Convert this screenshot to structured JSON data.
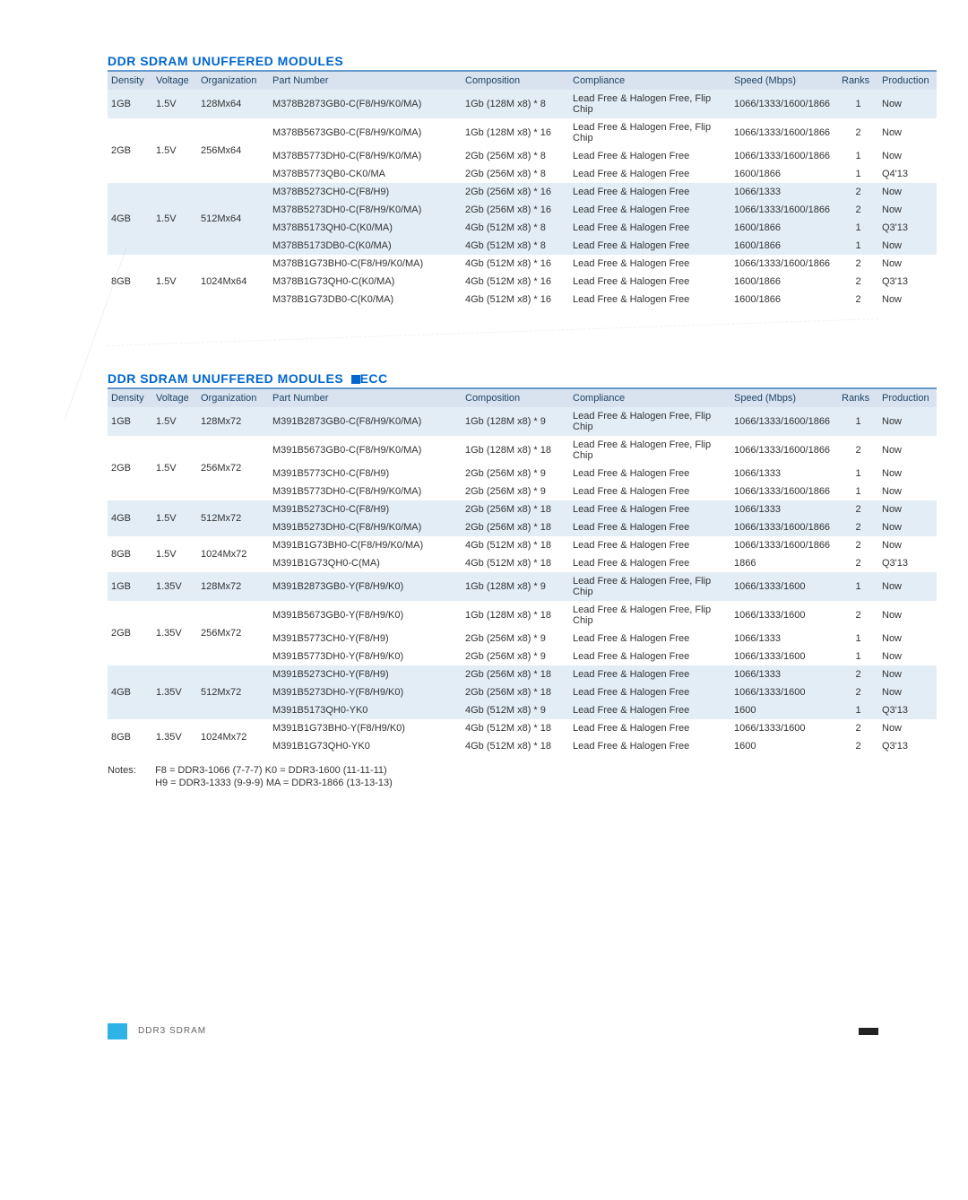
{
  "titles": {
    "t1": "DDR SDRAM UNUFFERED MODULES",
    "t2": "DDR SDRAM UNUFFERED MODULES",
    "t2_suffix": "ECC"
  },
  "headers": [
    "Density",
    "Voltage",
    "Organization",
    "Part Number",
    "Composition",
    "Compliance",
    "Speed (Mbps)",
    "Ranks",
    "Production"
  ],
  "table1": {
    "groups": [
      {
        "density": "1GB",
        "voltage": "1.5V",
        "org": "128Mx64",
        "shade": "odd",
        "rows": [
          {
            "part": "M378B2873GB0-C(F8/H9/K0/MA)",
            "comp": "1Gb (128M x8) * 8",
            "compl": "Lead Free & Halogen Free, Flip Chip",
            "speed": "1066/1333/1600/1866",
            "ranks": "1",
            "prod": "Now"
          }
        ]
      },
      {
        "density": "2GB",
        "voltage": "1.5V",
        "org": "256Mx64",
        "shade": "even",
        "rows": [
          {
            "part": "M378B5673GB0-C(F8/H9/K0/MA)",
            "comp": "1Gb (128M x8) * 16",
            "compl": "Lead Free & Halogen Free, Flip Chip",
            "speed": "1066/1333/1600/1866",
            "ranks": "2",
            "prod": "Now"
          },
          {
            "part": "M378B5773DH0-C(F8/H9/K0/MA)",
            "comp": "2Gb (256M x8) * 8",
            "compl": "Lead Free & Halogen Free",
            "speed": "1066/1333/1600/1866",
            "ranks": "1",
            "prod": "Now"
          },
          {
            "part": "M378B5773QB0-CK0/MA",
            "comp": "2Gb (256M x8) * 8",
            "compl": "Lead Free & Halogen Free",
            "speed": "1600/1866",
            "ranks": "1",
            "prod": "Q4'13"
          }
        ]
      },
      {
        "density": "4GB",
        "voltage": "1.5V",
        "org": "512Mx64",
        "shade": "odd",
        "rows": [
          {
            "part": "M378B5273CH0-C(F8/H9)",
            "comp": "2Gb (256M x8) * 16",
            "compl": "Lead Free & Halogen Free",
            "speed": "1066/1333",
            "ranks": "2",
            "prod": "Now"
          },
          {
            "part": "M378B5273DH0-C(F8/H9/K0/MA)",
            "comp": "2Gb (256M x8) * 16",
            "compl": "Lead Free & Halogen Free",
            "speed": "1066/1333/1600/1866",
            "ranks": "2",
            "prod": "Now"
          },
          {
            "part": "M378B5173QH0-C(K0/MA)",
            "comp": "4Gb (512M x8) * 8",
            "compl": "Lead Free & Halogen Free",
            "speed": "1600/1866",
            "ranks": "1",
            "prod": "Q3'13"
          },
          {
            "part": "M378B5173DB0-C(K0/MA)",
            "comp": "4Gb (512M x8) * 8",
            "compl": "Lead Free & Halogen Free",
            "speed": "1600/1866",
            "ranks": "1",
            "prod": "Now"
          }
        ]
      },
      {
        "density": "8GB",
        "voltage": "1.5V",
        "org": "1024Mx64",
        "shade": "even",
        "rows": [
          {
            "part": "M378B1G73BH0-C(F8/H9/K0/MA)",
            "comp": "4Gb (512M x8) * 16",
            "compl": "Lead Free & Halogen Free",
            "speed": "1066/1333/1600/1866",
            "ranks": "2",
            "prod": "Now"
          },
          {
            "part": "M378B1G73QH0-C(K0/MA)",
            "comp": "4Gb (512M x8) * 16",
            "compl": "Lead Free & Halogen Free",
            "speed": "1600/1866",
            "ranks": "2",
            "prod": "Q3'13"
          },
          {
            "part": "M378B1G73DB0-C(K0/MA)",
            "comp": "4Gb (512M x8) * 16",
            "compl": "Lead Free & Halogen Free",
            "speed": "1600/1866",
            "ranks": "2",
            "prod": "Now"
          }
        ]
      }
    ]
  },
  "table2": {
    "groups": [
      {
        "density": "1GB",
        "voltage": "1.5V",
        "org": "128Mx72",
        "shade": "odd",
        "rows": [
          {
            "part": "M391B2873GB0-C(F8/H9/K0/MA)",
            "comp": "1Gb (128M x8) * 9",
            "compl": "Lead Free & Halogen Free, Flip Chip",
            "speed": "1066/1333/1600/1866",
            "ranks": "1",
            "prod": "Now"
          }
        ]
      },
      {
        "density": "2GB",
        "voltage": "1.5V",
        "org": "256Mx72",
        "shade": "even",
        "rows": [
          {
            "part": "M391B5673GB0-C(F8/H9/K0/MA)",
            "comp": "1Gb (128M x8) * 18",
            "compl": "Lead Free & Halogen Free, Flip Chip",
            "speed": "1066/1333/1600/1866",
            "ranks": "2",
            "prod": "Now"
          },
          {
            "part": "M391B5773CH0-C(F8/H9)",
            "comp": "2Gb (256M x8) * 9",
            "compl": "Lead Free & Halogen Free",
            "speed": "1066/1333",
            "ranks": "1",
            "prod": "Now"
          },
          {
            "part": "M391B5773DH0-C(F8/H9/K0/MA)",
            "comp": "2Gb (256M x8) * 9",
            "compl": "Lead Free & Halogen Free",
            "speed": "1066/1333/1600/1866",
            "ranks": "1",
            "prod": "Now"
          }
        ]
      },
      {
        "density": "4GB",
        "voltage": "1.5V",
        "org": "512Mx72",
        "shade": "odd",
        "rows": [
          {
            "part": "M391B5273CH0-C(F8/H9)",
            "comp": "2Gb (256M x8) * 18",
            "compl": "Lead Free & Halogen Free",
            "speed": "1066/1333",
            "ranks": "2",
            "prod": "Now"
          },
          {
            "part": "M391B5273DH0-C(F8/H9/K0/MA)",
            "comp": "2Gb (256M x8) * 18",
            "compl": "Lead Free & Halogen Free",
            "speed": "1066/1333/1600/1866",
            "ranks": "2",
            "prod": "Now"
          }
        ]
      },
      {
        "density": "8GB",
        "voltage": "1.5V",
        "org": "1024Mx72",
        "shade": "even",
        "rows": [
          {
            "part": "M391B1G73BH0-C(F8/H9/K0/MA)",
            "comp": "4Gb (512M x8) * 18",
            "compl": "Lead Free & Halogen Free",
            "speed": "1066/1333/1600/1866",
            "ranks": "2",
            "prod": "Now"
          },
          {
            "part": "M391B1G73QH0-C(MA)",
            "comp": "4Gb (512M x8) * 18",
            "compl": "Lead Free & Halogen Free",
            "speed": "1866",
            "ranks": "2",
            "prod": "Q3'13"
          }
        ]
      },
      {
        "density": "1GB",
        "voltage": "1.35V",
        "org": "128Mx72",
        "shade": "odd",
        "rows": [
          {
            "part": "M391B2873GB0-Y(F8/H9/K0)",
            "comp": "1Gb (128M x8) * 9",
            "compl": "Lead Free & Halogen Free, Flip Chip",
            "speed": "1066/1333/1600",
            "ranks": "1",
            "prod": "Now"
          }
        ]
      },
      {
        "density": "2GB",
        "voltage": "1.35V",
        "org": "256Mx72",
        "shade": "even",
        "rows": [
          {
            "part": "M391B5673GB0-Y(F8/H9/K0)",
            "comp": "1Gb (128M x8) * 18",
            "compl": "Lead Free & Halogen Free, Flip Chip",
            "speed": "1066/1333/1600",
            "ranks": "2",
            "prod": "Now"
          },
          {
            "part": "M391B5773CH0-Y(F8/H9)",
            "comp": "2Gb (256M x8) * 9",
            "compl": "Lead Free & Halogen Free",
            "speed": "1066/1333",
            "ranks": "1",
            "prod": "Now"
          },
          {
            "part": "M391B5773DH0-Y(F8/H9/K0)",
            "comp": "2Gb (256M x8) * 9",
            "compl": "Lead Free & Halogen Free",
            "speed": "1066/1333/1600",
            "ranks": "1",
            "prod": "Now"
          }
        ]
      },
      {
        "density": "4GB",
        "voltage": "1.35V",
        "org": "512Mx72",
        "shade": "odd",
        "rows": [
          {
            "part": "M391B5273CH0-Y(F8/H9)",
            "comp": "2Gb (256M x8) * 18",
            "compl": "Lead Free & Halogen Free",
            "speed": "1066/1333",
            "ranks": "2",
            "prod": "Now"
          },
          {
            "part": "M391B5273DH0-Y(F8/H9/K0)",
            "comp": "2Gb (256M x8) * 18",
            "compl": "Lead Free & Halogen Free",
            "speed": "1066/1333/1600",
            "ranks": "2",
            "prod": "Now"
          },
          {
            "part": "M391B5173QH0-YK0",
            "comp": "4Gb (512M x8) * 9",
            "compl": "Lead Free & Halogen Free",
            "speed": "1600",
            "ranks": "1",
            "prod": "Q3'13"
          }
        ]
      },
      {
        "density": "8GB",
        "voltage": "1.35V",
        "org": "1024Mx72",
        "shade": "even",
        "rows": [
          {
            "part": "M391B1G73BH0-Y(F8/H9/K0)",
            "comp": "4Gb (512M x8) * 18",
            "compl": "Lead Free & Halogen Free",
            "speed": "1066/1333/1600",
            "ranks": "2",
            "prod": "Now"
          },
          {
            "part": "M391B1G73QH0-YK0",
            "comp": "4Gb (512M x8) * 18",
            "compl": "Lead Free & Halogen Free",
            "speed": "1600",
            "ranks": "2",
            "prod": "Q3'13"
          }
        ]
      }
    ]
  },
  "notes": {
    "label": "Notes:",
    "line1a": "F8 = DDR3-1066 (7-7-7)",
    "line1b": "K0 = DDR3-1600 (11-11-11)",
    "line2a": "H9 = DDR3-1333 (9-9-9)",
    "line2b": "MA = DDR3-1866 (13-13-13)"
  },
  "footer": {
    "text": "DDR3 SDRAM"
  }
}
